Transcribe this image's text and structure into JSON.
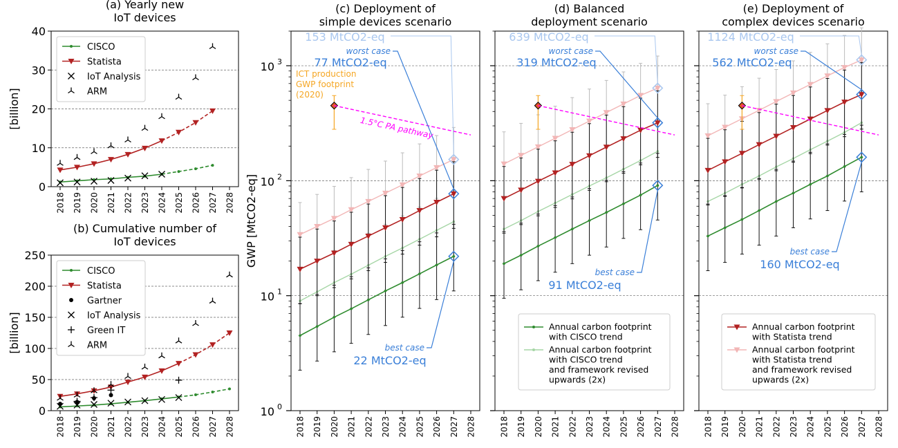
{
  "years": [
    2018,
    2019,
    2020,
    2021,
    2022,
    2023,
    2024,
    2025,
    2026,
    2027,
    2028
  ],
  "colors": {
    "cisco": "#2e8b2e",
    "statista": "#b22222",
    "cisco_light": "#a6d6a6",
    "statista_light": "#f2b6b6",
    "blue": "#3a7fd8",
    "blue_light": "#a9c7ef",
    "orange": "#f5a623",
    "pathway": "#ff00ff"
  },
  "chart_data": [
    {
      "id": "a",
      "type": "line",
      "title": "(a) Yearly new\nIoT devices",
      "ylabel": "[billion]",
      "ylim": [
        0,
        40
      ],
      "yticks": [
        0,
        10,
        20,
        30,
        40
      ],
      "legend_position": "top-left",
      "legend": [
        "CISCO",
        "Statista",
        "IoT Analysis",
        "ARM"
      ],
      "series": [
        {
          "name": "CISCO",
          "x": [
            2018,
            2019,
            2020,
            2021,
            2022,
            2023,
            2024,
            2025,
            2026,
            2027
          ],
          "y": [
            1.2,
            1.5,
            1.8,
            2.0,
            2.4,
            2.7,
            3.2,
            3.9,
            4.6,
            5.5
          ],
          "projected_from": 2024
        },
        {
          "name": "Statista",
          "x": [
            2018,
            2019,
            2020,
            2021,
            2022,
            2023,
            2024,
            2025,
            2026,
            2027
          ],
          "y": [
            4.3,
            5.0,
            5.9,
            7.0,
            8.3,
            9.9,
            11.8,
            14.0,
            16.5,
            19.5
          ],
          "projected_from": 2024
        },
        {
          "name": "IoT Analysis",
          "x": [
            2018,
            2019,
            2020,
            2021,
            2022,
            2023,
            2024
          ],
          "y": [
            1.0,
            1.2,
            1.4,
            1.6,
            2.2,
            2.8,
            3.2
          ]
        },
        {
          "name": "ARM",
          "x": [
            2018,
            2019,
            2020,
            2021,
            2022,
            2023,
            2024,
            2025,
            2026,
            2027
          ],
          "y": [
            6,
            7.5,
            9,
            10.5,
            12,
            15,
            18,
            23,
            28,
            36
          ]
        }
      ]
    },
    {
      "id": "b",
      "type": "line",
      "title": "(b) Cumulative number of\nIoT devices",
      "ylabel": "[billion]",
      "ylim": [
        0,
        250
      ],
      "yticks": [
        0,
        50,
        100,
        150,
        200,
        250
      ],
      "legend_position": "top-left",
      "legend": [
        "CISCO",
        "Statista",
        "Gartner",
        "IoT Analysis",
        "Green IT",
        "ARM"
      ],
      "series": [
        {
          "name": "CISCO",
          "x": [
            2018,
            2019,
            2020,
            2021,
            2022,
            2023,
            2024,
            2025,
            2026,
            2027,
            2028
          ],
          "y": [
            6,
            7.5,
            9,
            11,
            13.5,
            16,
            19,
            22,
            25.5,
            30,
            35
          ],
          "projected_from": 2025
        },
        {
          "name": "Statista",
          "x": [
            2018,
            2019,
            2020,
            2021,
            2022,
            2023,
            2024,
            2025,
            2026,
            2027,
            2028
          ],
          "y": [
            23,
            27,
            32,
            38,
            46,
            54,
            64,
            76,
            90,
            106,
            125
          ],
          "projected_from": 2025
        },
        {
          "name": "Gartner",
          "x": [
            2018,
            2019,
            2020,
            2021
          ],
          "y": [
            11,
            14,
            20,
            25
          ]
        },
        {
          "name": "IoT Analysis",
          "x": [
            2018,
            2019,
            2020,
            2021,
            2022,
            2023,
            2024,
            2025
          ],
          "y": [
            7,
            9,
            10,
            12,
            14,
            16,
            18,
            21
          ]
        },
        {
          "name": "Green IT",
          "x": [
            2019,
            2020,
            2021,
            2025
          ],
          "y": [
            15,
            21,
            33,
            49
          ]
        },
        {
          "name": "ARM",
          "x": [
            2018,
            2019,
            2020,
            2021,
            2022,
            2023,
            2024,
            2025,
            2026,
            2027,
            2028
          ],
          "y": [
            20,
            25,
            32,
            42,
            55,
            70,
            88,
            112,
            140,
            176,
            218
          ]
        }
      ]
    },
    {
      "id": "c",
      "type": "line",
      "scale": "log",
      "title": "(c) Deployment of\nsimple devices scenario",
      "ylabel": "GWP [MtCO2-eq]",
      "ylim": [
        1,
        2000
      ],
      "yticks": [
        1,
        10,
        100,
        1000
      ],
      "series": [
        {
          "name": "Annual carbon footprint with CISCO trend",
          "x": [
            2018,
            2019,
            2020,
            2021,
            2022,
            2023,
            2024,
            2025,
            2026,
            2027
          ],
          "y": [
            4.5,
            5.4,
            6.5,
            7.7,
            9.2,
            11,
            13,
            15.5,
            18.5,
            22
          ],
          "err_low": 0.5,
          "err_high": 1.9
        },
        {
          "name": "Annual carbon footprint with Statista trend",
          "x": [
            2018,
            2019,
            2020,
            2021,
            2022,
            2023,
            2024,
            2025,
            2026,
            2027
          ],
          "y": [
            17,
            20,
            23.5,
            28,
            33,
            39,
            46,
            55,
            65,
            77
          ],
          "err_low": 0.5,
          "err_high": 1.9
        },
        {
          "name": "Annual carbon footprint with CISCO trend and framework revised upwards (2x)",
          "x": [
            2018,
            2019,
            2020,
            2021,
            2022,
            2023,
            2024,
            2025,
            2026,
            2027
          ],
          "y": [
            9,
            10.8,
            13,
            15.4,
            18.4,
            22,
            26,
            31,
            37,
            44
          ],
          "err_low": 0.5,
          "err_high": 1.9
        },
        {
          "name": "Annual carbon footprint with Statista trend and framework revised upwards (2x)",
          "x": [
            2018,
            2019,
            2020,
            2021,
            2022,
            2023,
            2024,
            2025,
            2026,
            2027
          ],
          "y": [
            34,
            40,
            47,
            56,
            66,
            78,
            92,
            110,
            130,
            153
          ],
          "err_low": 0.5,
          "err_high": 1.9
        }
      ],
      "annotations": [
        {
          "text": "153 MtCO2-eq",
          "role": "worst_case_revised"
        },
        {
          "text": "worst case",
          "role": "worst_case_label"
        },
        {
          "text": "77 MtCO2-eq",
          "role": "worst_case"
        },
        {
          "text": "best case",
          "role": "best_case_label"
        },
        {
          "text": "22 MtCO2-eq",
          "role": "best_case"
        },
        {
          "text": "ICT production\nGWP footprint\n(2020)",
          "role": "ict"
        },
        {
          "text": "1.5°C PA pathway",
          "role": "pathway"
        }
      ],
      "ict_point": {
        "x": 2020,
        "y": 450,
        "low": 280,
        "high": 550
      },
      "pathway": {
        "x": [
          2020,
          2028
        ],
        "y": [
          450,
          250
        ]
      }
    },
    {
      "id": "d",
      "type": "line",
      "scale": "log",
      "title": "(d)  Balanced\ndeployment scenario",
      "ylim": [
        1,
        2000
      ],
      "yticks": [
        1,
        10,
        100,
        1000
      ],
      "legend_position": "bottom-center",
      "legend": [
        "Annual carbon footprint\nwith CISCO trend",
        "Annual carbon footprint\nwith CISCO trend\nand framework revised\nupwards (2x)"
      ],
      "series": [
        {
          "name": "Annual carbon footprint with CISCO trend",
          "x": [
            2018,
            2019,
            2020,
            2021,
            2022,
            2023,
            2024,
            2025,
            2026,
            2027
          ],
          "y": [
            19,
            22.5,
            27,
            32,
            38,
            45,
            53,
            63,
            75,
            91
          ],
          "err_low": 0.5,
          "err_high": 1.9
        },
        {
          "name": "Annual carbon footprint with Statista trend",
          "x": [
            2018,
            2019,
            2020,
            2021,
            2022,
            2023,
            2024,
            2025,
            2026,
            2027
          ],
          "y": [
            70,
            83,
            99,
            117,
            139,
            165,
            196,
            232,
            275,
            319
          ],
          "err_low": 0.5,
          "err_high": 1.9
        },
        {
          "name": "Annual carbon footprint with CISCO trend and framework revised upwards (2x)",
          "x": [
            2018,
            2019,
            2020,
            2021,
            2022,
            2023,
            2024,
            2025,
            2026,
            2027
          ],
          "y": [
            38,
            45,
            54,
            64,
            76,
            90,
            106,
            126,
            150,
            180
          ],
          "err_low": 0.5,
          "err_high": 1.9
        },
        {
          "name": "Annual carbon footprint with Statista trend and framework revised upwards (2x)",
          "x": [
            2018,
            2019,
            2020,
            2021,
            2022,
            2023,
            2024,
            2025,
            2026,
            2027
          ],
          "y": [
            140,
            166,
            197,
            234,
            278,
            330,
            392,
            465,
            552,
            639
          ],
          "err_low": 0.5,
          "err_high": 1.9
        }
      ],
      "annotations": [
        {
          "text": "639 MtCO2-eq",
          "role": "worst_case_revised"
        },
        {
          "text": "worst case",
          "role": "worst_case_label"
        },
        {
          "text": "319 MtCO2-eq",
          "role": "worst_case"
        },
        {
          "text": "best case",
          "role": "best_case_label"
        },
        {
          "text": "91 MtCO2-eq",
          "role": "best_case"
        }
      ],
      "ict_point": {
        "x": 2020,
        "y": 450,
        "low": 280,
        "high": 550
      },
      "pathway": {
        "x": [
          2020,
          2028
        ],
        "y": [
          450,
          250
        ]
      }
    },
    {
      "id": "e",
      "type": "line",
      "scale": "log",
      "title": "(e)  Deployment of\ncomplex devices scenario",
      "ylim": [
        1,
        2000
      ],
      "yticks": [
        1,
        10,
        100,
        1000
      ],
      "legend_position": "bottom-center",
      "legend": [
        "Annual carbon footprint\nwith Statista trend",
        "Annual carbon footprint\nwith Statista trend\nand framework revised\nupwards (2x)"
      ],
      "series": [
        {
          "name": "Annual carbon footprint with CISCO trend",
          "x": [
            2018,
            2019,
            2020,
            2021,
            2022,
            2023,
            2024,
            2025,
            2026,
            2027
          ],
          "y": [
            33,
            39,
            46,
            55,
            66,
            78,
            93,
            110,
            133,
            160
          ],
          "err_low": 0.5,
          "err_high": 1.9
        },
        {
          "name": "Annual carbon footprint with Statista trend",
          "x": [
            2018,
            2019,
            2020,
            2021,
            2022,
            2023,
            2024,
            2025,
            2026,
            2027
          ],
          "y": [
            123,
            146,
            173,
            206,
            244,
            290,
            344,
            408,
            483,
            562
          ],
          "err_low": 0.5,
          "err_high": 1.9
        },
        {
          "name": "Annual carbon footprint with CISCO trend and framework revised upwards (2x)",
          "x": [
            2018,
            2019,
            2020,
            2021,
            2022,
            2023,
            2024,
            2025,
            2026,
            2027
          ],
          "y": [
            66,
            78,
            93,
            110,
            132,
            156,
            186,
            221,
            263,
            320
          ],
          "err_low": 0.5,
          "err_high": 1.9
        },
        {
          "name": "Annual carbon footprint with Statista trend and framework revised upwards (2x)",
          "x": [
            2018,
            2019,
            2020,
            2021,
            2022,
            2023,
            2024,
            2025,
            2026,
            2027
          ],
          "y": [
            246,
            292,
            346,
            410,
            488,
            580,
            688,
            816,
            966,
            1124
          ],
          "err_low": 0.5,
          "err_high": 1.9
        }
      ],
      "annotations": [
        {
          "text": "1124 MtCO2-eq",
          "role": "worst_case_revised"
        },
        {
          "text": "worst case",
          "role": "worst_case_label"
        },
        {
          "text": "562 MtCO2-eq",
          "role": "worst_case"
        },
        {
          "text": "best case",
          "role": "best_case_label"
        },
        {
          "text": "160 MtCO2-eq",
          "role": "best_case"
        }
      ],
      "ict_point": {
        "x": 2020,
        "y": 450,
        "low": 280,
        "high": 550
      },
      "pathway": {
        "x": [
          2020,
          2028
        ],
        "y": [
          450,
          250
        ]
      }
    }
  ]
}
